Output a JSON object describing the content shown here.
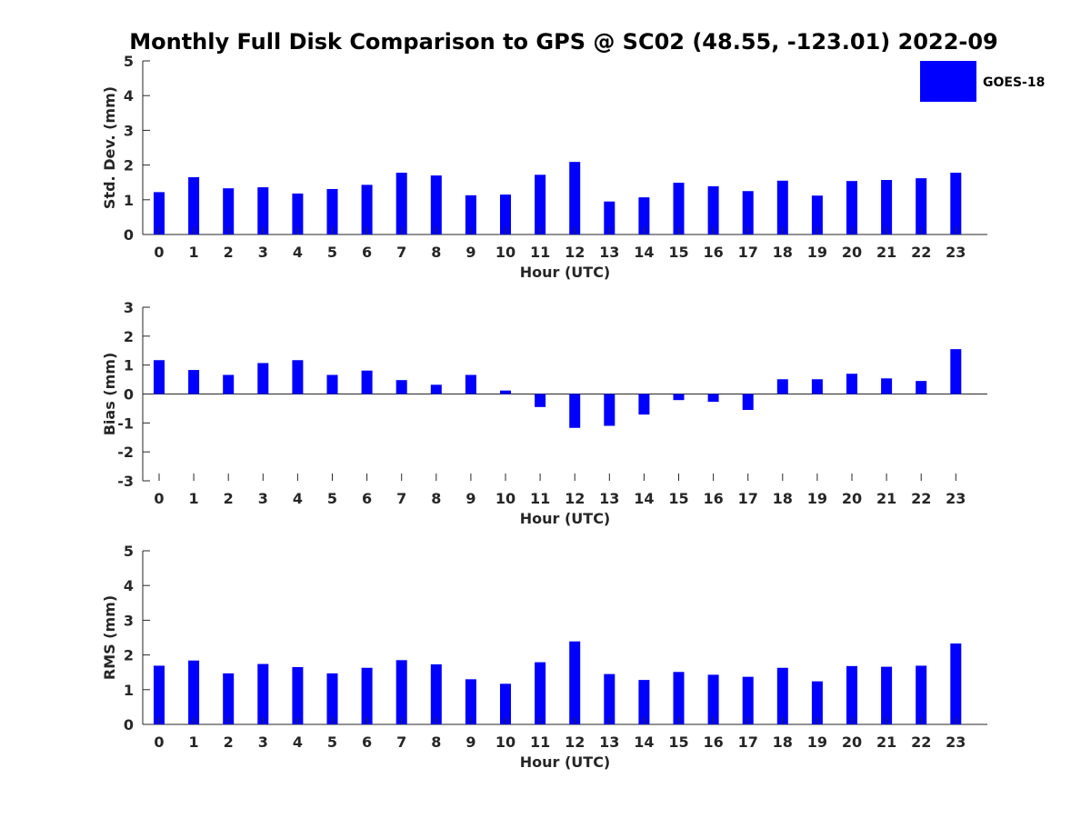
{
  "chart_data": {
    "type": "bar",
    "title": "Monthly Full Disk Comparison to GPS @ SC02 (48.55, -123.01) 2022-09",
    "legend": {
      "label": "GOES-18",
      "color": "#0000ff",
      "placement": "top-right"
    },
    "categories": [
      "0",
      "1",
      "2",
      "3",
      "4",
      "5",
      "6",
      "7",
      "8",
      "9",
      "10",
      "11",
      "12",
      "13",
      "14",
      "15",
      "16",
      "17",
      "18",
      "19",
      "20",
      "21",
      "22",
      "23"
    ],
    "panels": [
      {
        "name": "std-dev",
        "ylabel": "Std. Dev. (mm)",
        "xlabel": "Hour (UTC)",
        "ylim": [
          0,
          5
        ],
        "yticks": [
          0,
          1,
          2,
          3,
          4,
          5
        ],
        "series": [
          {
            "name": "GOES-18",
            "values": [
              1.22,
              1.65,
              1.33,
              1.36,
              1.18,
              1.31,
              1.43,
              1.78,
              1.7,
              1.13,
              1.15,
              1.72,
              2.09,
              0.95,
              1.07,
              1.49,
              1.39,
              1.25,
              1.55,
              1.12,
              1.54,
              1.57,
              1.62,
              1.78
            ]
          }
        ]
      },
      {
        "name": "bias",
        "ylabel": "Bias (mm)",
        "xlabel": "Hour (UTC)",
        "ylim": [
          -3,
          3
        ],
        "yticks": [
          -3,
          -2,
          -1,
          0,
          1,
          2,
          3
        ],
        "series": [
          {
            "name": "GOES-18",
            "values": [
              1.17,
              0.83,
              0.66,
              1.07,
              1.17,
              0.66,
              0.81,
              0.48,
              0.32,
              0.66,
              0.12,
              -0.45,
              -1.17,
              -1.1,
              -0.71,
              -0.21,
              -0.27,
              -0.55,
              0.51,
              0.51,
              0.7,
              0.54,
              0.45,
              1.55
            ]
          }
        ]
      },
      {
        "name": "rms",
        "ylabel": "RMS (mm)",
        "xlabel": "Hour (UTC)",
        "ylim": [
          0,
          5
        ],
        "yticks": [
          0,
          1,
          2,
          3,
          4,
          5
        ],
        "series": [
          {
            "name": "GOES-18",
            "values": [
              1.69,
              1.84,
              1.47,
              1.74,
              1.65,
              1.47,
              1.63,
              1.85,
              1.73,
              1.3,
              1.17,
              1.79,
              2.39,
              1.45,
              1.28,
              1.51,
              1.43,
              1.37,
              1.63,
              1.24,
              1.68,
              1.66,
              1.69,
              2.33
            ]
          }
        ]
      }
    ]
  }
}
